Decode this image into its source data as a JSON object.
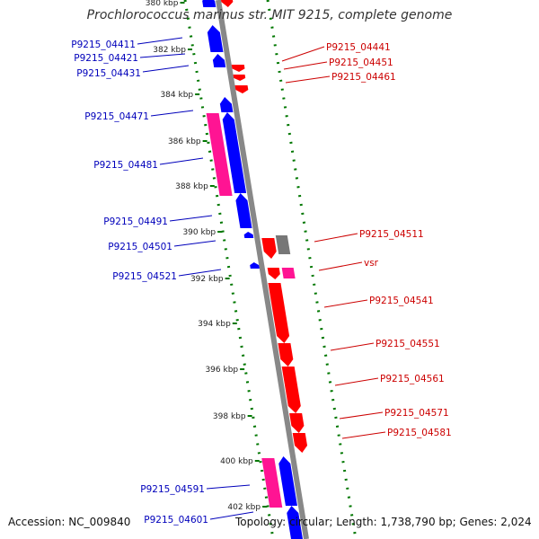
{
  "title": "Prochlorococcus marinus str. MIT 9215, complete genome",
  "footer": {
    "accession_label": "Accession:",
    "accession_value": "NC_009840",
    "summary": "Topology: circular; Length: 1,738,790 bp; Genes: 2,024"
  },
  "colors": {
    "backbone": "#888888",
    "ruler": "#007700",
    "fwd_gene": "#0000ff",
    "rev_gene": "#ff0000",
    "pseudo_fwd": "#ff1493",
    "pseudo_rev": "#ff1493",
    "other": "#777777",
    "fwd_label": "#0000bb",
    "rev_label": "#cc0000"
  },
  "ticks": [
    {
      "label": "380 kbp"
    },
    {
      "label": "382 kbp"
    },
    {
      "label": "384 kbp"
    },
    {
      "label": "386 kbp"
    },
    {
      "label": "388 kbp"
    },
    {
      "label": "390 kbp"
    },
    {
      "label": "392 kbp"
    },
    {
      "label": "394 kbp"
    },
    {
      "label": "396 kbp"
    },
    {
      "label": "398 kbp"
    },
    {
      "label": "400 kbp"
    },
    {
      "label": "402 kbp"
    }
  ],
  "fwd_labels": [
    {
      "label": "P9215_04411"
    },
    {
      "label": "P9215_04421"
    },
    {
      "label": "P9215_04431"
    },
    {
      "label": "P9215_04471"
    },
    {
      "label": "P9215_04481"
    },
    {
      "label": "P9215_04491"
    },
    {
      "label": "P9215_04501"
    },
    {
      "label": "P9215_04521"
    },
    {
      "label": "P9215_04591"
    },
    {
      "label": "P9215_04601"
    }
  ],
  "rev_labels": [
    {
      "label": "P9215_04441"
    },
    {
      "label": "P9215_04451"
    },
    {
      "label": "P9215_04461"
    },
    {
      "label": "P9215_04511"
    },
    {
      "label": "vsr"
    },
    {
      "label": "P9215_04541"
    },
    {
      "label": "P9215_04551"
    },
    {
      "label": "P9215_04561"
    },
    {
      "label": "P9215_04571"
    },
    {
      "label": "P9215_04581"
    }
  ]
}
